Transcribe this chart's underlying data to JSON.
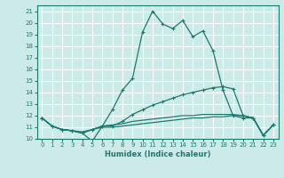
{
  "background_color": "#cceae7",
  "grid_color": "#ffffff",
  "line_color": "#1a7a6e",
  "xlabel": "Humidex (Indice chaleur)",
  "xlim": [
    -0.5,
    23.5
  ],
  "ylim": [
    10,
    21.5
  ],
  "xticks": [
    0,
    1,
    2,
    3,
    4,
    5,
    6,
    7,
    8,
    9,
    10,
    11,
    12,
    13,
    14,
    15,
    16,
    17,
    18,
    19,
    20,
    21,
    22,
    23
  ],
  "yticks": [
    10,
    11,
    12,
    13,
    14,
    15,
    16,
    17,
    18,
    19,
    20,
    21
  ],
  "line1_x": [
    0,
    1,
    2,
    3,
    4,
    5,
    6,
    7,
    8,
    9,
    10,
    11,
    12,
    13,
    14,
    15,
    16,
    17,
    18,
    19,
    20,
    21,
    22,
    23
  ],
  "line1_y": [
    11.8,
    11.1,
    10.8,
    10.7,
    10.5,
    9.8,
    11.1,
    12.5,
    14.2,
    15.2,
    19.2,
    21.0,
    19.9,
    19.5,
    20.2,
    18.8,
    19.3,
    17.6,
    14.2,
    12.0,
    11.8,
    11.8,
    10.3,
    11.2
  ],
  "line2_x": [
    0,
    1,
    2,
    3,
    4,
    5,
    6,
    7,
    8,
    9,
    10,
    11,
    12,
    13,
    14,
    15,
    16,
    17,
    18,
    19,
    20,
    21,
    22,
    23
  ],
  "line2_y": [
    11.8,
    11.1,
    10.8,
    10.7,
    10.5,
    10.8,
    11.1,
    11.1,
    11.5,
    12.1,
    12.5,
    12.9,
    13.2,
    13.5,
    13.8,
    14.0,
    14.2,
    14.4,
    14.5,
    14.3,
    12.0,
    11.8,
    10.3,
    11.2
  ],
  "line3_x": [
    0,
    1,
    2,
    3,
    4,
    5,
    6,
    7,
    8,
    9,
    10,
    11,
    12,
    13,
    14,
    15,
    16,
    17,
    18,
    19,
    20,
    21,
    22,
    23
  ],
  "line3_y": [
    11.8,
    11.1,
    10.8,
    10.7,
    10.6,
    10.8,
    11.1,
    11.2,
    11.3,
    11.5,
    11.6,
    11.7,
    11.8,
    11.9,
    12.0,
    12.0,
    12.1,
    12.1,
    12.1,
    12.1,
    12.0,
    11.8,
    10.3,
    11.2
  ],
  "line4_x": [
    0,
    1,
    2,
    3,
    4,
    5,
    6,
    7,
    8,
    9,
    10,
    11,
    12,
    13,
    14,
    15,
    16,
    17,
    18,
    19,
    20,
    21,
    22,
    23
  ],
  "line4_y": [
    11.8,
    11.1,
    10.8,
    10.7,
    10.5,
    10.8,
    11.0,
    11.0,
    11.1,
    11.2,
    11.3,
    11.4,
    11.5,
    11.6,
    11.7,
    11.8,
    11.8,
    11.9,
    11.9,
    12.0,
    12.0,
    11.8,
    10.3,
    11.2
  ]
}
